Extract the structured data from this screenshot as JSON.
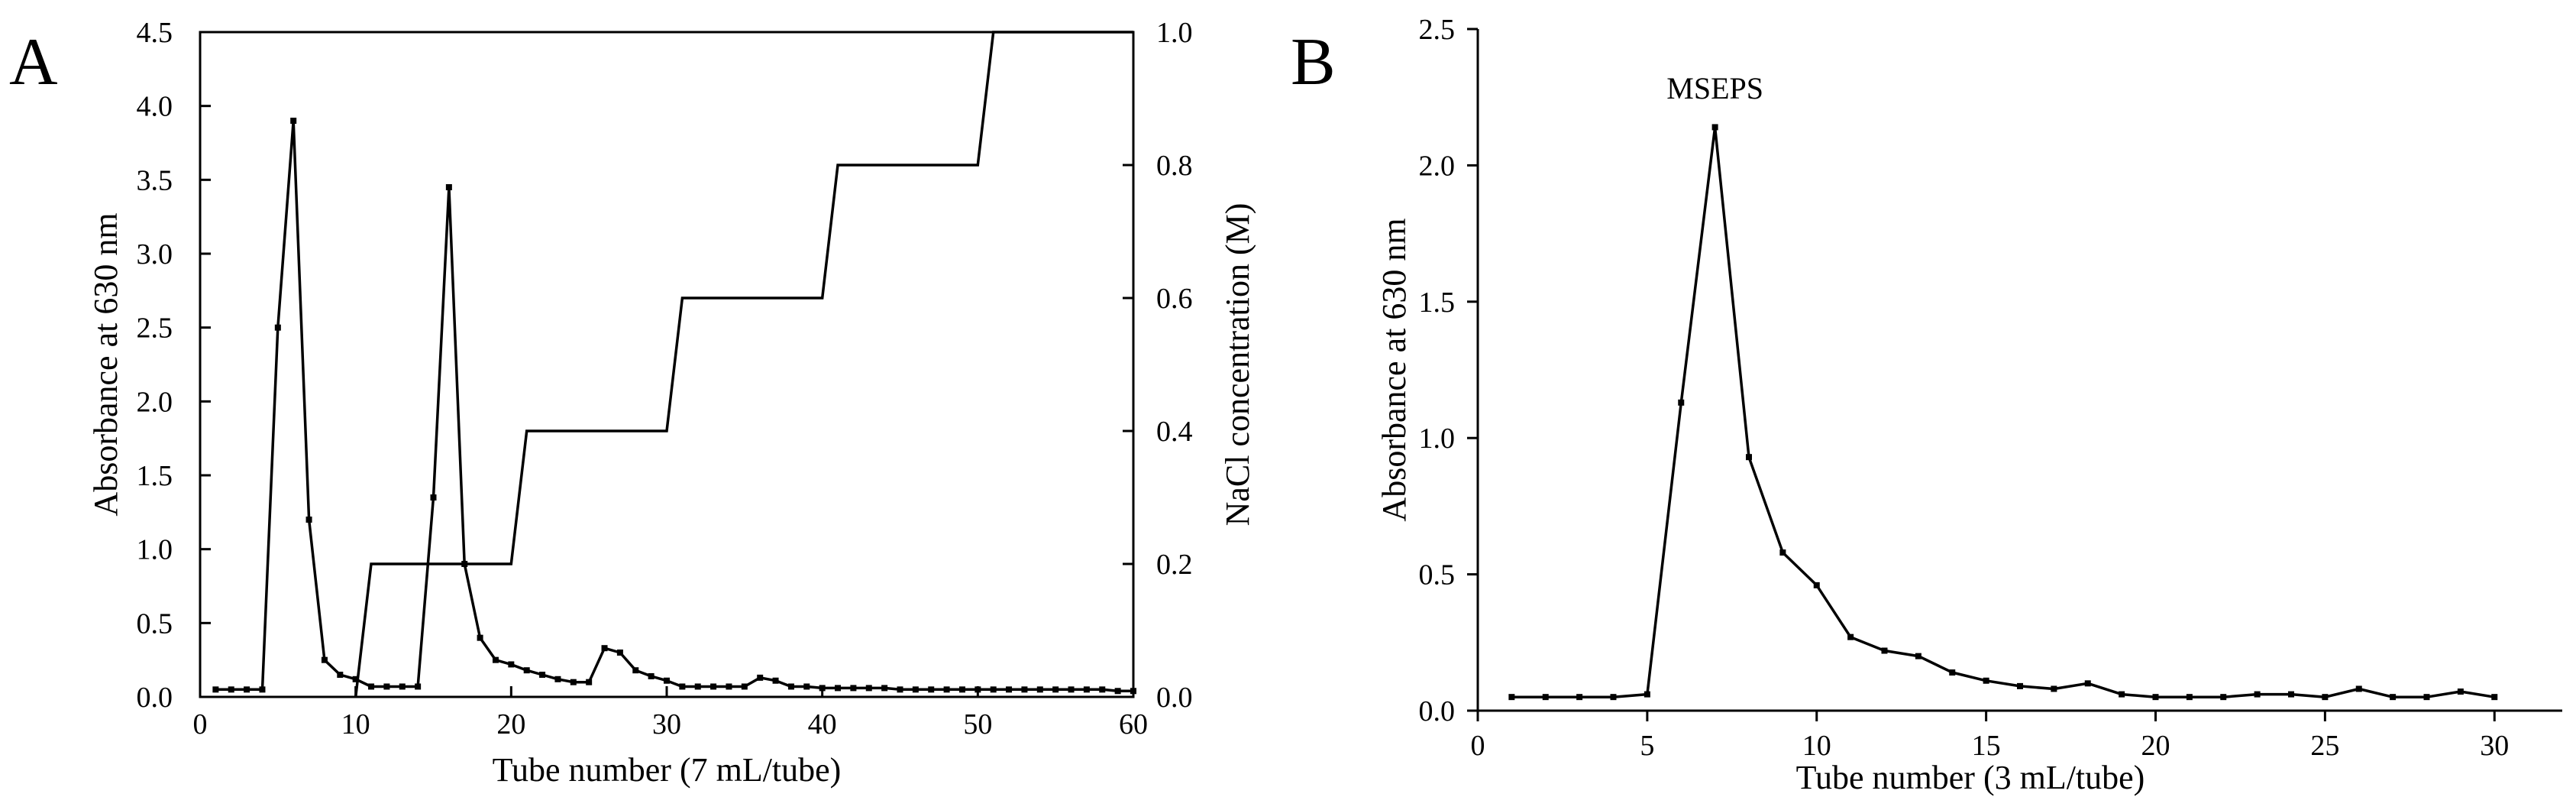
{
  "chart_data": [
    {
      "panel": "A",
      "type": "line",
      "xlabel": "Tube number (7 mL/tube)",
      "ylabel": "Absorbance at 630 nm",
      "y2label": "NaCl concentration (M)",
      "xlim": [
        0,
        60
      ],
      "ylim": [
        0,
        4.5
      ],
      "y2lim": [
        0,
        1.0
      ],
      "xticks": [
        "0",
        "10",
        "20",
        "30",
        "40",
        "50",
        "60"
      ],
      "yticks": [
        "0.0",
        "0.5",
        "1.0",
        "1.5",
        "2.0",
        "2.5",
        "3.0",
        "3.5",
        "4.0",
        "4.5"
      ],
      "y2ticks": [
        "0.0",
        "0.2",
        "0.4",
        "0.6",
        "0.8",
        "1.0"
      ],
      "series": [
        {
          "name": "Absorbance at 630 nm",
          "axis": "left",
          "x": [
            1,
            2,
            3,
            4,
            5,
            6,
            7,
            8,
            9,
            10,
            11,
            12,
            13,
            14,
            15,
            16,
            17,
            18,
            19,
            20,
            21,
            22,
            23,
            24,
            25,
            26,
            27,
            28,
            29,
            30,
            31,
            32,
            33,
            34,
            35,
            36,
            37,
            38,
            39,
            40,
            41,
            42,
            43,
            44,
            45,
            46,
            47,
            48,
            49,
            50,
            51,
            52,
            53,
            54,
            55,
            56,
            57,
            58,
            59,
            60
          ],
          "y": [
            0.05,
            0.05,
            0.05,
            0.05,
            2.5,
            3.9,
            1.2,
            0.25,
            0.15,
            0.12,
            0.07,
            0.07,
            0.07,
            0.07,
            1.35,
            3.45,
            0.9,
            0.4,
            0.25,
            0.22,
            0.18,
            0.15,
            0.12,
            0.1,
            0.1,
            0.33,
            0.3,
            0.18,
            0.14,
            0.11,
            0.07,
            0.07,
            0.07,
            0.07,
            0.07,
            0.13,
            0.11,
            0.07,
            0.07,
            0.06,
            0.06,
            0.06,
            0.06,
            0.06,
            0.05,
            0.05,
            0.05,
            0.05,
            0.05,
            0.05,
            0.05,
            0.05,
            0.05,
            0.05,
            0.05,
            0.05,
            0.05,
            0.05,
            0.04,
            0.04
          ]
        },
        {
          "name": "NaCl concentration (M)",
          "axis": "right",
          "style": "step",
          "x": [
            10,
            11,
            20,
            21,
            30,
            31,
            40,
            41,
            50,
            51,
            60
          ],
          "y": [
            0.0,
            0.2,
            0.2,
            0.4,
            0.4,
            0.6,
            0.6,
            0.8,
            0.8,
            1.0,
            1.0
          ]
        }
      ]
    },
    {
      "panel": "B",
      "type": "line",
      "xlabel": "Tube number (3 mL/tube)",
      "ylabel": "Absorbance at 630 nm",
      "xlim": [
        0,
        32
      ],
      "ylim": [
        0,
        2.5
      ],
      "xticks": [
        "0",
        "5",
        "10",
        "15",
        "20",
        "25",
        "30"
      ],
      "yticks": [
        "0.0",
        "0.5",
        "1.0",
        "1.5",
        "2.0",
        "2.5"
      ],
      "annotations": [
        {
          "text": "MSEPS",
          "x": 7,
          "y": 2.15
        }
      ],
      "series": [
        {
          "name": "Absorbance at 630 nm",
          "x": [
            1,
            2,
            3,
            4,
            5,
            6,
            7,
            8,
            9,
            10,
            11,
            12,
            13,
            14,
            15,
            16,
            17,
            18,
            19,
            20,
            21,
            22,
            23,
            24,
            25,
            26,
            27,
            28,
            29,
            30
          ],
          "y": [
            0.05,
            0.05,
            0.05,
            0.05,
            0.06,
            1.13,
            2.14,
            0.93,
            0.58,
            0.46,
            0.27,
            0.22,
            0.2,
            0.14,
            0.11,
            0.09,
            0.08,
            0.1,
            0.06,
            0.05,
            0.05,
            0.05,
            0.06,
            0.06,
            0.05,
            0.08,
            0.05,
            0.05,
            0.07,
            0.05
          ]
        }
      ]
    }
  ]
}
